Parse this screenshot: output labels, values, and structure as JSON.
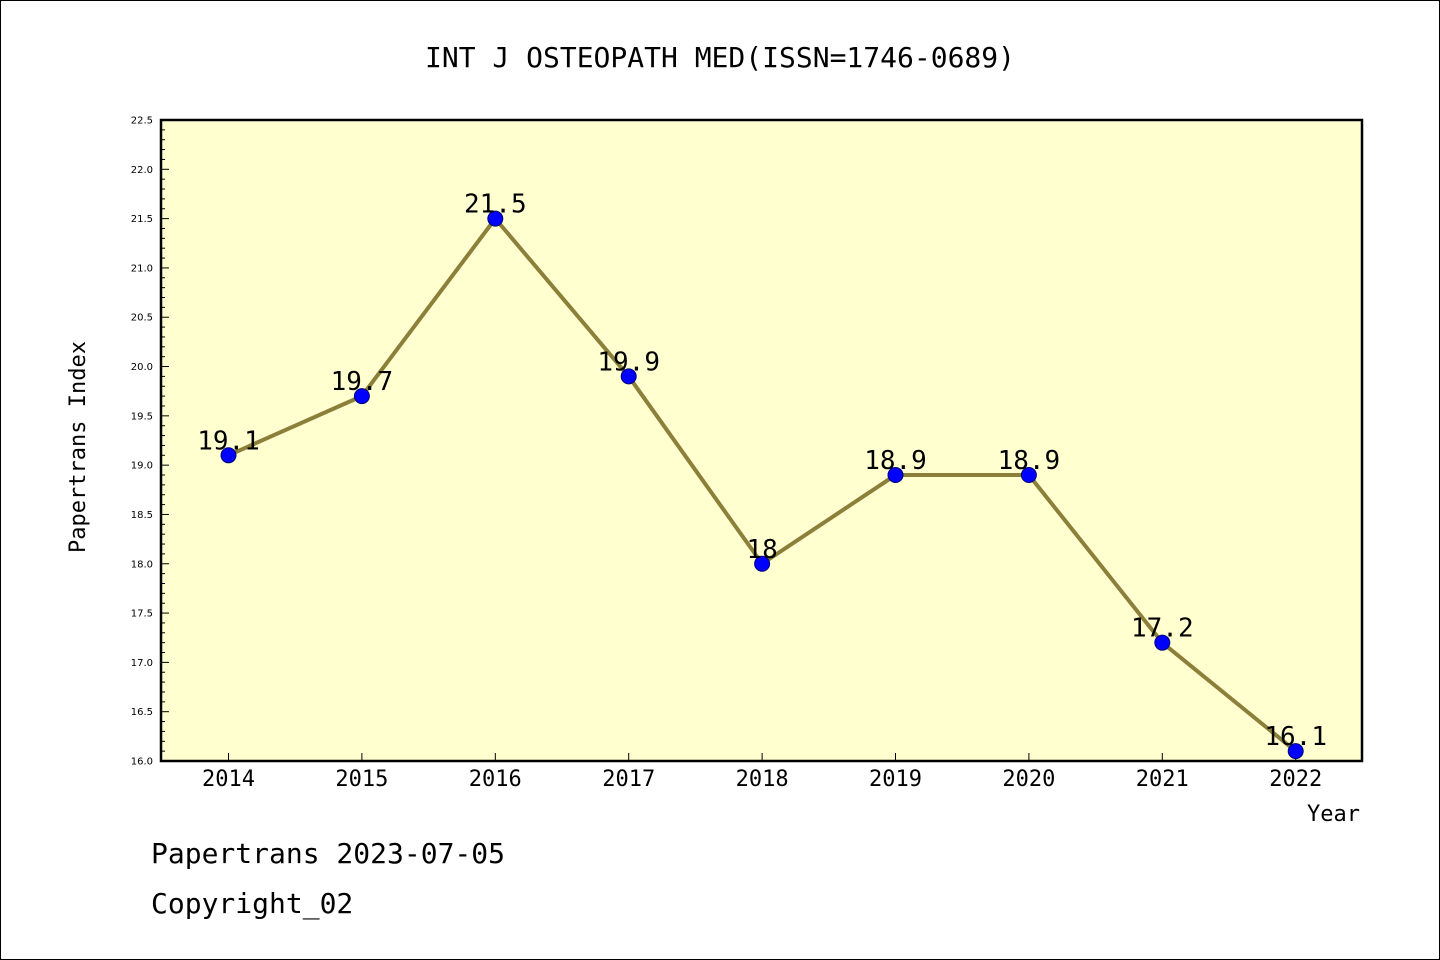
{
  "chart_data": {
    "type": "line",
    "title": "INT J OSTEOPATH MED(ISSN=1746-0689)",
    "xlabel": "Year",
    "ylabel": "Papertrans Index",
    "categories": [
      "2014",
      "2015",
      "2016",
      "2017",
      "2018",
      "2019",
      "2020",
      "2021",
      "2022"
    ],
    "values": [
      19.1,
      19.7,
      21.5,
      19.9,
      18.0,
      18.9,
      18.9,
      17.2,
      16.1
    ],
    "data_labels": [
      "19.1",
      "19.7",
      "21.5",
      "19.9",
      "18",
      "18.9",
      "18.9",
      "17.2",
      "16.1"
    ],
    "ylim": [
      16.0,
      22.5
    ],
    "yticks": [
      "16.0",
      "16.5",
      "17.0",
      "17.5",
      "18.0",
      "18.5",
      "19.0",
      "19.5",
      "20.0",
      "20.5",
      "21.0",
      "21.5",
      "22.0",
      "22.5"
    ],
    "grid": false,
    "plot_background": "#ffffd0",
    "line_color": "#8c7f3a",
    "marker_color": "#0000ff"
  },
  "footer": {
    "date_line": "Papertrans 2023-07-05",
    "copyright": "Copyright_02"
  }
}
